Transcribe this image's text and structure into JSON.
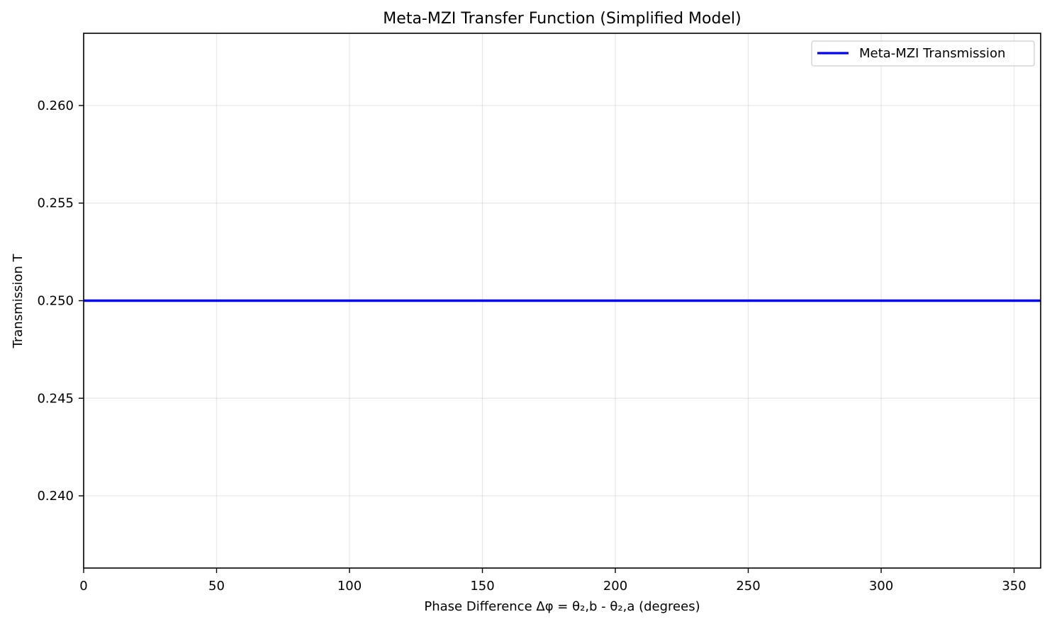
{
  "chart_data": {
    "type": "line",
    "title": "Meta-MZI Transfer Function (Simplified Model)",
    "xlabel": "Phase Difference Δφ = θ₂,b - θ₂,a (degrees)",
    "ylabel": "Transmission T",
    "xlim": [
      0,
      360
    ],
    "ylim": [
      0.2363,
      0.2637
    ],
    "x_ticks": [
      0,
      50,
      100,
      150,
      200,
      250,
      300,
      350
    ],
    "x_tick_labels": [
      "0",
      "50",
      "100",
      "150",
      "200",
      "250",
      "300",
      "350"
    ],
    "y_ticks": [
      0.24,
      0.245,
      0.25,
      0.255,
      0.26
    ],
    "y_tick_labels": [
      "0.240",
      "0.245",
      "0.250",
      "0.255",
      "0.260"
    ],
    "grid": true,
    "legend_position": "top-right",
    "series": [
      {
        "name": "Meta-MZI Transmission",
        "color": "#0000ff",
        "x": [
          0,
          360
        ],
        "y": [
          0.25,
          0.25
        ]
      }
    ]
  }
}
